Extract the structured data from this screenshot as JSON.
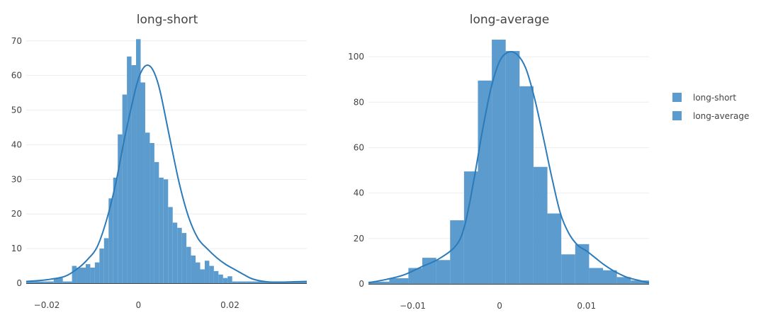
{
  "colors": {
    "bar": "#5b9bce",
    "line": "#2b7bba",
    "grid": "#eeeeee",
    "axis": "#444444"
  },
  "legend": {
    "items": [
      {
        "label": "long-short",
        "color": "#5b9bce"
      },
      {
        "label": "long-average",
        "color": "#5b9bce"
      }
    ]
  },
  "chart_data": [
    {
      "type": "bar",
      "title": "long-short",
      "xlim": [
        -0.0245,
        0.0368
      ],
      "ylim": [
        0,
        72
      ],
      "xticks": [
        -0.02,
        0,
        0.02
      ],
      "xtick_labels": [
        "−0.02",
        "0",
        "0.02"
      ],
      "yticks": [
        0,
        10,
        20,
        30,
        40,
        50,
        60,
        70
      ],
      "ytick_labels": [
        "0",
        "10",
        "20",
        "30",
        "40",
        "50",
        "60",
        "70"
      ],
      "bin_edges": [
        -0.0245,
        -0.0225,
        -0.0206,
        -0.0185,
        -0.0165,
        -0.0145,
        -0.0135,
        -0.0115,
        -0.0105,
        -0.0095,
        -0.0085,
        -0.0075,
        -0.0065,
        -0.0055,
        -0.0045,
        -0.0035,
        -0.0025,
        -0.0015,
        -0.0005,
        0.0005,
        0.0015,
        0.0025,
        0.0035,
        0.0045,
        0.0055,
        0.0065,
        0.0075,
        0.0085,
        0.0095,
        0.0105,
        0.0115,
        0.0125,
        0.0135,
        0.0145,
        0.0155,
        0.0165,
        0.0175,
        0.0185,
        0.0195,
        0.0205,
        0.0215,
        0.0235,
        0.0255,
        0.0368
      ],
      "values": [
        0.5,
        0.5,
        0.5,
        1.5,
        0.5,
        5,
        4.5,
        5.5,
        4.5,
        6,
        10,
        13,
        24.5,
        30.5,
        43,
        54.5,
        65.5,
        63,
        70.5,
        58,
        43.5,
        40.5,
        35,
        30.5,
        30,
        22,
        17.5,
        16,
        14.5,
        10.5,
        8,
        6,
        4,
        6.5,
        5,
        3.5,
        2.5,
        1.5,
        2,
        0.5,
        0.5,
        0.5,
        0.5
      ],
      "kde_x": [
        -0.0245,
        -0.02,
        -0.016,
        -0.013,
        -0.011,
        -0.009,
        -0.007,
        -0.005,
        -0.003,
        -0.001,
        0.0,
        0.001,
        0.002,
        0.003,
        0.004,
        0.005,
        0.007,
        0.009,
        0.011,
        0.013,
        0.015,
        0.017,
        0.019,
        0.021,
        0.023,
        0.025,
        0.028,
        0.031,
        0.034,
        0.0368
      ],
      "kde_y": [
        0.5,
        1,
        2,
        4.5,
        7,
        10.5,
        18,
        28.5,
        42,
        54,
        59,
        62,
        63,
        62,
        59,
        54,
        41,
        28.5,
        19,
        13,
        10,
        7.5,
        5.5,
        4,
        2.5,
        1.2,
        0.4,
        0.3,
        0.4,
        0.5
      ]
    },
    {
      "type": "bar",
      "title": "long-average",
      "xlim": [
        -0.0151,
        0.0172
      ],
      "ylim": [
        0,
        110
      ],
      "xticks": [
        -0.01,
        0,
        0.01
      ],
      "xtick_labels": [
        "−0.01",
        "0",
        "0.01"
      ],
      "yticks": [
        0,
        20,
        40,
        60,
        80,
        100
      ],
      "ytick_labels": [
        "0",
        "20",
        "40",
        "60",
        "80",
        "100"
      ],
      "bin_edges": [
        -0.0151,
        -0.0127,
        -0.0105,
        -0.0089,
        -0.0073,
        -0.0057,
        -0.0041,
        -0.0025,
        -0.0009,
        0.0007,
        0.0023,
        0.0039,
        0.0055,
        0.0071,
        0.0087,
        0.0103,
        0.0119,
        0.0135,
        0.0151,
        0.0172
      ],
      "values": [
        1,
        2.5,
        7,
        11.5,
        10.5,
        28,
        49.5,
        89.5,
        107.5,
        102.5,
        87,
        51.5,
        31,
        13,
        17.5,
        7,
        6,
        3,
        1.5
      ],
      "kde_x": [
        -0.0151,
        -0.013,
        -0.011,
        -0.009,
        -0.007,
        -0.005,
        -0.004,
        -0.003,
        -0.002,
        -0.001,
        0.0,
        0.001,
        0.002,
        0.003,
        0.004,
        0.005,
        0.006,
        0.007,
        0.008,
        0.009,
        0.01,
        0.011,
        0.012,
        0.013,
        0.014,
        0.015,
        0.0172
      ],
      "kde_y": [
        0.5,
        2,
        4,
        7.5,
        11,
        17,
        26,
        45,
        67,
        86,
        98,
        102,
        101,
        95,
        82,
        65,
        47,
        31,
        22,
        17,
        14.5,
        11.5,
        8.5,
        6,
        4,
        2.5,
        0.5
      ]
    }
  ]
}
